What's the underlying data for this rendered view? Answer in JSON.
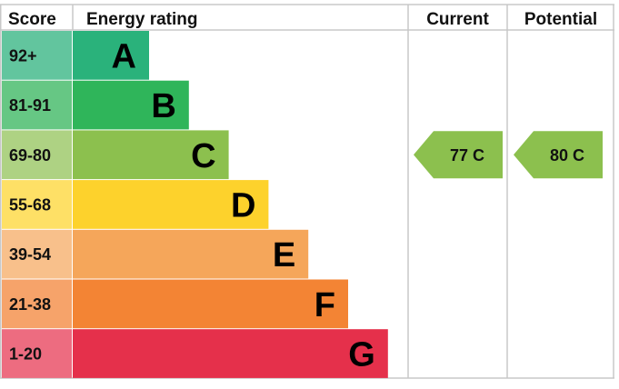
{
  "header": {
    "score": "Score",
    "rating": "Energy rating",
    "current": "Current",
    "potential": "Potential"
  },
  "chart_data": {
    "type": "bar",
    "title": "",
    "categories": [
      "A",
      "B",
      "C",
      "D",
      "E",
      "F",
      "G"
    ],
    "score_ranges": [
      "92+",
      "81-91",
      "69-80",
      "55-68",
      "39-54",
      "21-38",
      "1-20"
    ],
    "band_colors": [
      "#2ab27b",
      "#2fb55a",
      "#8cc04e",
      "#fdd22c",
      "#f5a65a",
      "#f38434",
      "#e5304b"
    ],
    "score_cell_colors": [
      "#62c59e",
      "#66c784",
      "#aed283",
      "#fee066",
      "#f8c08b",
      "#f6a36a",
      "#ed6c80"
    ],
    "current": {
      "value": 77,
      "band": "C",
      "label": "77  C",
      "color": "#8cc04e"
    },
    "potential": {
      "value": 80,
      "band": "C",
      "label": "80  C",
      "color": "#8cc04e"
    }
  }
}
